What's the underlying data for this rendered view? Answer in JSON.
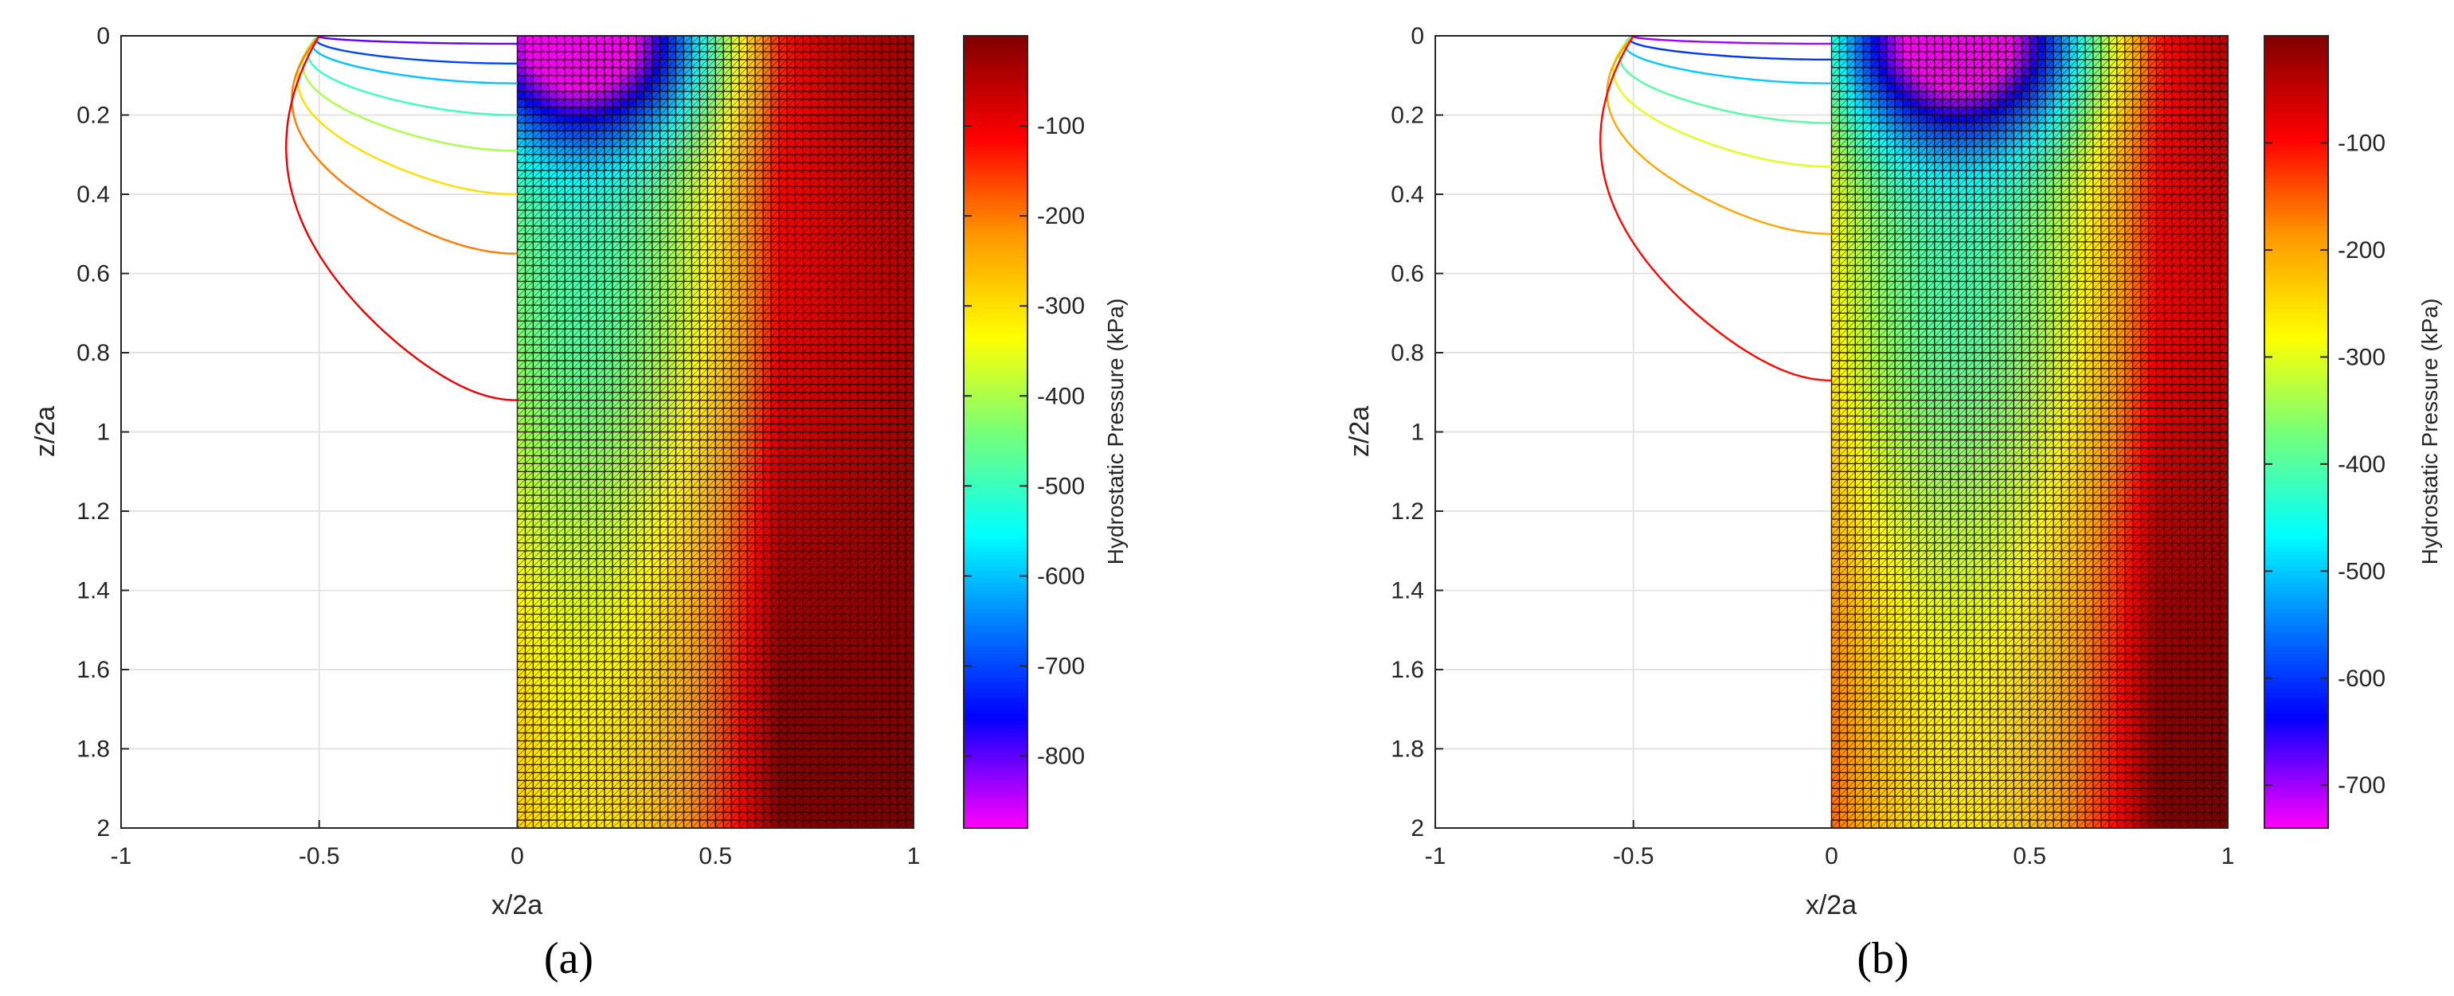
{
  "chart_data": [
    {
      "type": "heatmap",
      "panel_label": "(a)",
      "xlabel": "x/2a",
      "ylabel": "z/2a",
      "colorbar_label": "Hydrostatic Pressure (kPa)",
      "xlim": [
        -1,
        1
      ],
      "ylim": [
        0,
        2
      ],
      "y_reversed": true,
      "grid": true,
      "xticks": [
        "-1",
        "-0.5",
        "0",
        "0.5",
        "1"
      ],
      "yticks": [
        "0",
        "0.2",
        "0.4",
        "0.6",
        "0.8",
        "1",
        "1.2",
        "1.4",
        "1.6",
        "1.8",
        "2"
      ],
      "clim": [
        -880,
        0
      ],
      "colorbar_ticks": [
        {
          "value": -100,
          "label": "-100"
        },
        {
          "value": -200,
          "label": "-200"
        },
        {
          "value": -300,
          "label": "-300"
        },
        {
          "value": -400,
          "label": "-400"
        },
        {
          "value": -500,
          "label": "-500"
        },
        {
          "value": -600,
          "label": "-600"
        },
        {
          "value": -700,
          "label": "-700"
        },
        {
          "value": -800,
          "label": "-800"
        }
      ],
      "contact_half_width": 0.5,
      "peak_center_x": 0.16,
      "peak_pressure": -880,
      "contour_levels": [
        -800,
        -700,
        -600,
        -500,
        -400,
        -300,
        -200,
        -100
      ],
      "contour_depths": [
        0.02,
        0.07,
        0.12,
        0.2,
        0.29,
        0.4,
        0.55,
        0.92
      ]
    },
    {
      "type": "heatmap",
      "panel_label": "(b)",
      "xlabel": "x/2a",
      "ylabel": "z/2a",
      "colorbar_label": "Hydrostatic Pressure (kPa)",
      "xlim": [
        -1,
        1
      ],
      "ylim": [
        0,
        2
      ],
      "y_reversed": true,
      "grid": true,
      "xticks": [
        "-1",
        "-0.5",
        "0",
        "0.5",
        "1"
      ],
      "yticks": [
        "0",
        "0.2",
        "0.4",
        "0.6",
        "0.8",
        "1",
        "1.2",
        "1.4",
        "1.6",
        "1.8",
        "2"
      ],
      "clim": [
        -740,
        0
      ],
      "colorbar_ticks": [
        {
          "value": -100,
          "label": "-100"
        },
        {
          "value": -200,
          "label": "-200"
        },
        {
          "value": -300,
          "label": "-300"
        },
        {
          "value": -400,
          "label": "-400"
        },
        {
          "value": -500,
          "label": "-500"
        },
        {
          "value": -600,
          "label": "-600"
        },
        {
          "value": -700,
          "label": "-700"
        }
      ],
      "contact_half_width": 0.5,
      "peak_center_x": 0.32,
      "peak_pressure": -740,
      "contour_levels": [
        -700,
        -600,
        -500,
        -400,
        -300,
        -200,
        -100
      ],
      "contour_depths": [
        0.02,
        0.06,
        0.12,
        0.22,
        0.33,
        0.5,
        0.87
      ]
    }
  ]
}
